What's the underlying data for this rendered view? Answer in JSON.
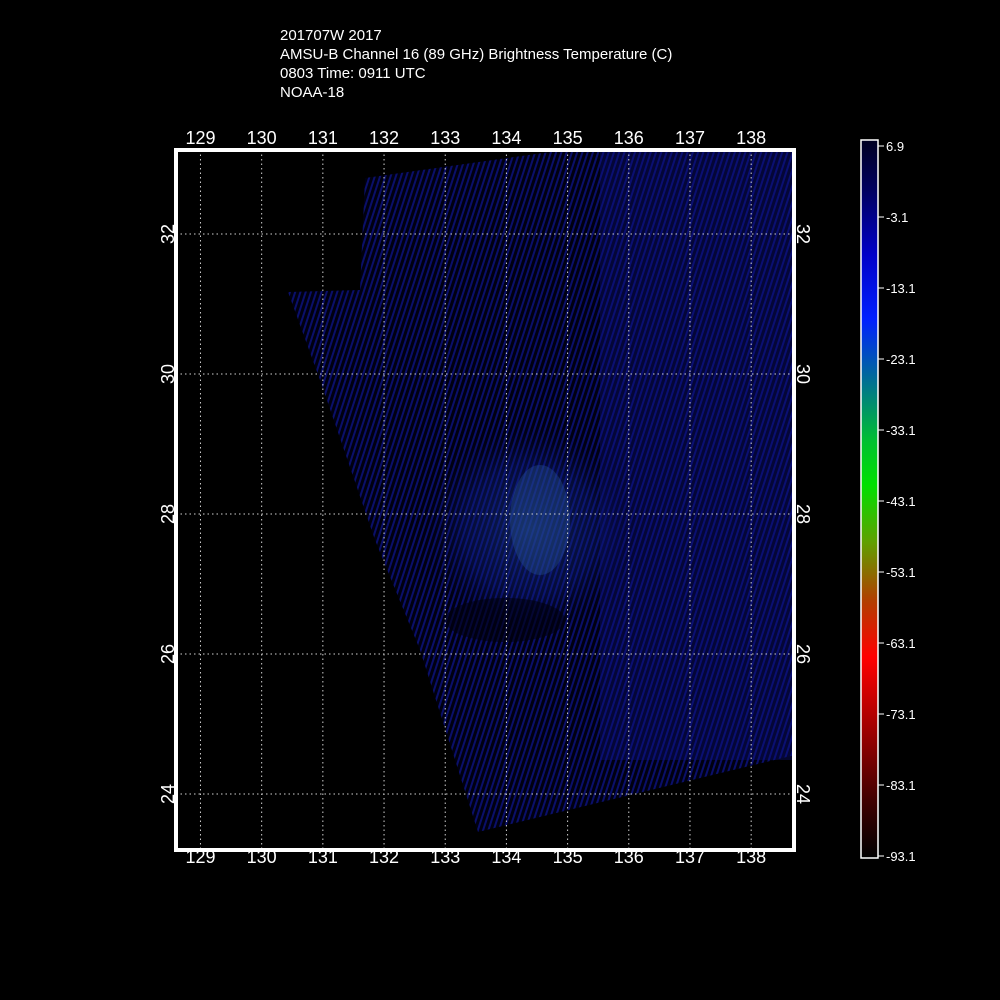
{
  "title": {
    "line1": "201707W 2017",
    "line2": "AMSU-B Channel 16 (89 GHz) Brightness Temperature (C)",
    "line3": "0803 Time: 0911 UTC",
    "line4": "NOAA-18"
  },
  "map": {
    "lon_ticks": [
      "129",
      "130",
      "131",
      "132",
      "133",
      "134",
      "135",
      "136",
      "137",
      "138"
    ],
    "lat_ticks": [
      "24",
      "26",
      "28",
      "30",
      "32"
    ],
    "lon_range": [
      128.6,
      138.7
    ],
    "lat_range": [
      23.2,
      33.2
    ],
    "grid": true,
    "frame_color": "#ffffff"
  },
  "colorbar": {
    "labels": [
      "6.9",
      "-3.1",
      "-13.1",
      "-23.1",
      "-33.1",
      "-43.1",
      "-53.1",
      "-63.1",
      "-73.1",
      "-83.1",
      "-93.1"
    ],
    "colors": [
      "#000022",
      "#000060",
      "#0000c8",
      "#0020ff",
      "#006a9a",
      "#00a050",
      "#00e000",
      "#30e000",
      "#806000",
      "#b04000",
      "#ff0000",
      "#a00000",
      "#500000",
      "#000000"
    ]
  }
}
